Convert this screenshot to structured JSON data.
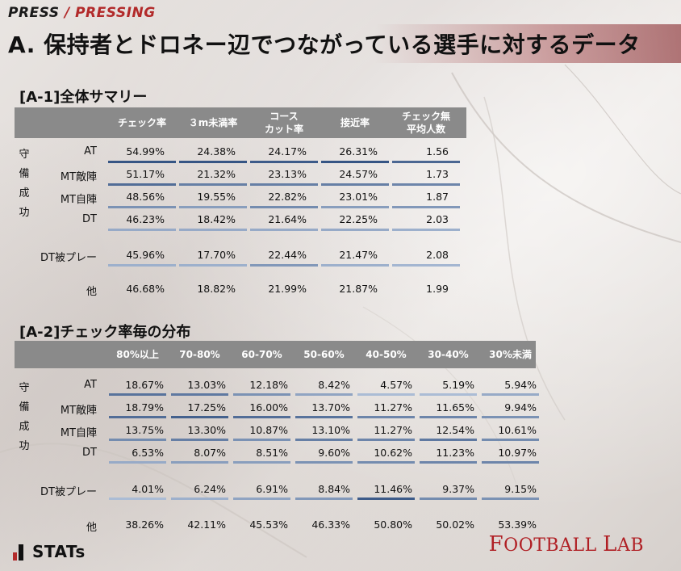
{
  "header": {
    "small_title_a": "PRESS",
    "small_slash": " / ",
    "small_title_b": "PRESSING",
    "main_title": "A. 保持者とドロネー辺でつながっている選手に対するデータ"
  },
  "colors": {
    "accent_red": "#b22a2a",
    "bar_strong": "#2f4f7f",
    "bar_light": "#b9c8df"
  },
  "section_a1": {
    "title": "[A-1]全体サマリー",
    "side_label": [
      "守",
      "備",
      "成",
      "功"
    ],
    "chart_data": {
      "type": "table",
      "columns": [
        "チェック率",
        "３m未満率",
        "コース\nカット率",
        "接近率",
        "チェック無\n平均人数"
      ],
      "rows": [
        {
          "label": "AT",
          "values": [
            "54.99%",
            "24.38%",
            "24.17%",
            "26.31%",
            "1.56"
          ],
          "bars": [
            0.95,
            0.95,
            0.9,
            0.95,
            0.8
          ]
        },
        {
          "label": "MT敵陣",
          "values": [
            "51.17%",
            "21.32%",
            "23.13%",
            "24.57%",
            "1.73"
          ],
          "bars": [
            0.75,
            0.6,
            0.6,
            0.6,
            0.55
          ]
        },
        {
          "label": "MT自陣",
          "values": [
            "48.56%",
            "19.55%",
            "22.82%",
            "23.01%",
            "1.87"
          ],
          "bars": [
            0.45,
            0.35,
            0.5,
            0.35,
            0.4
          ]
        },
        {
          "label": "DT",
          "values": [
            "46.23%",
            "18.42%",
            "21.64%",
            "22.25%",
            "2.03"
          ],
          "bars": [
            0.25,
            0.25,
            0.25,
            0.25,
            0.2
          ]
        },
        {
          "label": "DT被プレー",
          "values": [
            "45.96%",
            "17.70%",
            "22.44%",
            "21.47%",
            "2.08"
          ],
          "bars": [
            0.2,
            0.2,
            0.4,
            0.2,
            0.15
          ]
        },
        {
          "label": "他",
          "values": [
            "46.68%",
            "18.82%",
            "21.99%",
            "21.87%",
            "1.99"
          ],
          "bars": null
        }
      ]
    }
  },
  "section_a2": {
    "title": "[A-2]チェック率毎の分布",
    "side_label": [
      "守",
      "備",
      "成",
      "功"
    ],
    "chart_data": {
      "type": "table",
      "columns": [
        "80%以上",
        "70-80%",
        "60-70%",
        "50-60%",
        "40-50%",
        "30-40%",
        "30%未満"
      ],
      "rows": [
        {
          "label": "AT",
          "values": [
            "18.67%",
            "13.03%",
            "12.18%",
            "8.42%",
            "4.57%",
            "5.19%",
            "5.94%"
          ],
          "bars": [
            0.7,
            0.65,
            0.45,
            0.3,
            0.1,
            0.1,
            0.25
          ]
        },
        {
          "label": "MT敵陣",
          "values": [
            "18.79%",
            "17.25%",
            "16.00%",
            "13.70%",
            "11.27%",
            "11.65%",
            "9.94%"
          ],
          "bars": [
            0.75,
            0.85,
            0.75,
            0.7,
            0.55,
            0.55,
            0.45
          ]
        },
        {
          "label": "MT自陣",
          "values": [
            "13.75%",
            "13.30%",
            "10.87%",
            "13.10%",
            "11.27%",
            "12.54%",
            "10.61%"
          ],
          "bars": [
            0.5,
            0.6,
            0.45,
            0.6,
            0.55,
            0.65,
            0.5
          ]
        },
        {
          "label": "DT",
          "values": [
            "6.53%",
            "8.07%",
            "8.51%",
            "9.60%",
            "10.62%",
            "11.23%",
            "10.97%"
          ],
          "bars": [
            0.25,
            0.35,
            0.35,
            0.45,
            0.5,
            0.55,
            0.55
          ]
        },
        {
          "label": "DT被プレー",
          "values": [
            "4.01%",
            "6.24%",
            "6.91%",
            "8.84%",
            "11.46%",
            "9.37%",
            "9.15%"
          ],
          "bars": [
            0.1,
            0.2,
            0.3,
            0.4,
            0.9,
            0.5,
            0.45
          ]
        },
        {
          "label": "他",
          "values": [
            "38.26%",
            "42.11%",
            "45.53%",
            "46.33%",
            "50.80%",
            "50.02%",
            "53.39%"
          ],
          "bars": null
        }
      ]
    }
  },
  "footer": {
    "stats_logo_text": "STATs",
    "football_lab": {
      "f": "F",
      "ootball": "OOTBALL ",
      "l": "L",
      "ab": "AB"
    }
  }
}
